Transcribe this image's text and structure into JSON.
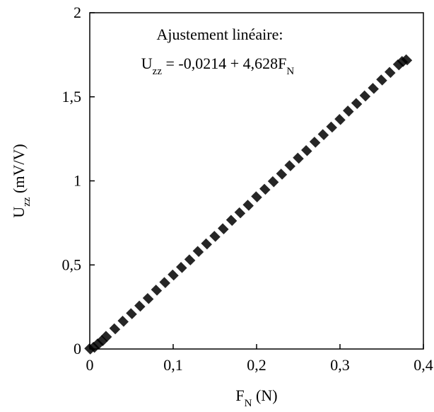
{
  "chart_data": {
    "type": "scatter",
    "title": "",
    "annotation": {
      "line1": "Ajustement linéaire:",
      "line2_main": "U",
      "line2_sub": "zz",
      "line2_rest": " = -0,0214 + 4,628F",
      "line2_sub2": "N"
    },
    "xlabel": {
      "main": "F",
      "sub": "N",
      "rest": " (N)"
    },
    "ylabel": {
      "main": "U",
      "sub": "zz",
      "rest": " (mV/V)"
    },
    "xlim": [
      0,
      0.4
    ],
    "ylim": [
      0,
      2
    ],
    "x_ticks": [
      {
        "value": 0,
        "label": "0"
      },
      {
        "value": 0.1,
        "label": "0,1"
      },
      {
        "value": 0.2,
        "label": "0,2"
      },
      {
        "value": 0.3,
        "label": "0,3"
      },
      {
        "value": 0.4,
        "label": "0,4"
      }
    ],
    "y_ticks": [
      {
        "value": 0,
        "label": "0"
      },
      {
        "value": 0.5,
        "label": "0,5"
      },
      {
        "value": 1,
        "label": "1"
      },
      {
        "value": 1.5,
        "label": "1,5"
      },
      {
        "value": 2,
        "label": "2"
      }
    ],
    "series": [
      {
        "color": "#000000",
        "x": [
          0.0,
          0.005,
          0.01,
          0.015,
          0.02,
          0.03,
          0.04,
          0.05,
          0.06,
          0.07,
          0.08,
          0.09,
          0.1,
          0.11,
          0.12,
          0.13,
          0.14,
          0.15,
          0.16,
          0.17,
          0.18,
          0.19,
          0.2,
          0.21,
          0.22,
          0.23,
          0.24,
          0.25,
          0.26,
          0.27,
          0.28,
          0.29,
          0.3,
          0.31,
          0.32,
          0.33,
          0.34,
          0.35,
          0.36,
          0.37,
          0.375,
          0.38
        ],
        "y": [
          0.0,
          0.01,
          0.03,
          0.05,
          0.075,
          0.12,
          0.165,
          0.21,
          0.255,
          0.3,
          0.35,
          0.395,
          0.44,
          0.485,
          0.53,
          0.58,
          0.625,
          0.67,
          0.715,
          0.765,
          0.81,
          0.855,
          0.905,
          0.95,
          0.995,
          1.04,
          1.09,
          1.135,
          1.18,
          1.23,
          1.275,
          1.32,
          1.365,
          1.415,
          1.46,
          1.505,
          1.55,
          1.6,
          1.645,
          1.69,
          1.71,
          1.72
        ]
      }
    ],
    "grid": false,
    "legend": "none"
  }
}
